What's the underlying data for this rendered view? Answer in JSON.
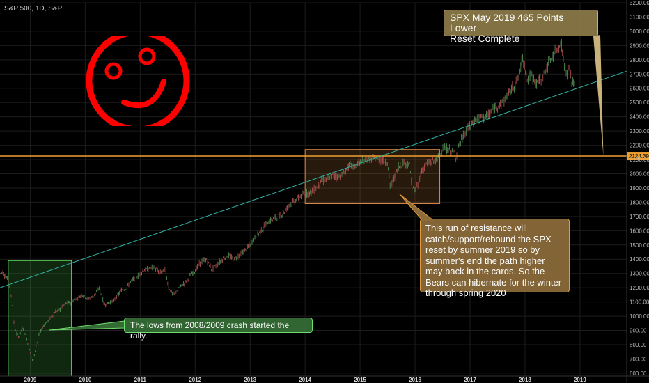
{
  "chart_data": {
    "type": "line",
    "title": "S&P 500, 1D, S&P",
    "ylim": [
      580,
      3200
    ],
    "xlim": [
      2008.55,
      2019.95
    ],
    "yticks": [
      600,
      700,
      800,
      900,
      1000,
      1100,
      1200,
      1300,
      1400,
      1500,
      1600,
      1700,
      1800,
      1900,
      2000,
      2100,
      2200,
      2300,
      2400,
      2500,
      2600,
      2700,
      2800,
      2900,
      3000,
      3100,
      3200
    ],
    "xticks": [
      {
        "x": 2009.1,
        "label": "2009"
      },
      {
        "x": 2010.1,
        "label": "2010"
      },
      {
        "x": 2011.1,
        "label": "2011"
      },
      {
        "x": 2012.1,
        "label": "2012"
      },
      {
        "x": 2013.1,
        "label": "2013"
      },
      {
        "x": 2014.1,
        "label": "2014"
      },
      {
        "x": 2015.1,
        "label": "2015"
      },
      {
        "x": 2016.1,
        "label": "2016"
      },
      {
        "x": 2017.1,
        "label": "2017"
      },
      {
        "x": 2018.1,
        "label": "2018"
      },
      {
        "x": 2019.1,
        "label": "2019"
      }
    ],
    "series": [
      {
        "x": [
          2008.55,
          2008.6,
          2008.65,
          2008.7,
          2008.75,
          2008.8,
          2008.85,
          2008.9,
          2008.95,
          2009.0,
          2009.05,
          2009.1,
          2009.15,
          2009.2,
          2009.25,
          2009.3,
          2009.35,
          2009.45,
          2009.55,
          2009.65,
          2009.75,
          2009.85,
          2009.95,
          2010.05,
          2010.15,
          2010.25,
          2010.35,
          2010.45,
          2010.55,
          2010.65,
          2010.75,
          2010.85,
          2010.95,
          2011.05,
          2011.15,
          2011.25,
          2011.35,
          2011.45,
          2011.55,
          2011.62,
          2011.7,
          2011.8,
          2011.9,
          2012.0,
          2012.1,
          2012.2,
          2012.3,
          2012.4,
          2012.5,
          2012.6,
          2012.7,
          2012.8,
          2012.9,
          2013.0,
          2013.1,
          2013.2,
          2013.3,
          2013.4,
          2013.5,
          2013.6,
          2013.7,
          2013.8,
          2013.9,
          2014.0,
          2014.1,
          2014.2,
          2014.3,
          2014.4,
          2014.5,
          2014.6,
          2014.7,
          2014.8,
          2014.9,
          2015.0,
          2015.1,
          2015.2,
          2015.3,
          2015.4,
          2015.5,
          2015.6,
          2015.65,
          2015.7,
          2015.8,
          2015.9,
          2016.0,
          2016.05,
          2016.1,
          2016.15,
          2016.2,
          2016.3,
          2016.4,
          2016.5,
          2016.6,
          2016.7,
          2016.8,
          2016.85,
          2016.9,
          2017.0,
          2017.1,
          2017.2,
          2017.3,
          2017.4,
          2017.5,
          2017.6,
          2017.7,
          2017.8,
          2017.9,
          2018.0,
          2018.05,
          2018.1,
          2018.15,
          2018.2,
          2018.3,
          2018.4,
          2018.5,
          2018.6,
          2018.7,
          2018.75,
          2018.8,
          2018.85,
          2018.9,
          2018.95,
          2019.0
        ],
        "y": [
          1300,
          1310,
          1280,
          1260,
          1150,
          960,
          880,
          850,
          920,
          880,
          820,
          750,
          680,
          780,
          860,
          900,
          940,
          980,
          1030,
          1050,
          1090,
          1100,
          1130,
          1150,
          1120,
          1140,
          1200,
          1080,
          1100,
          1120,
          1180,
          1200,
          1250,
          1280,
          1320,
          1330,
          1350,
          1300,
          1330,
          1200,
          1150,
          1200,
          1230,
          1280,
          1320,
          1380,
          1400,
          1330,
          1360,
          1400,
          1430,
          1400,
          1430,
          1460,
          1500,
          1560,
          1600,
          1650,
          1680,
          1700,
          1720,
          1780,
          1800,
          1840,
          1860,
          1870,
          1900,
          1950,
          1960,
          1990,
          1980,
          2000,
          2060,
          2050,
          2080,
          2100,
          2100,
          2110,
          2100,
          2080,
          1900,
          1950,
          2050,
          2080,
          2060,
          1900,
          1880,
          1920,
          2000,
          2070,
          2080,
          2100,
          2170,
          2170,
          2150,
          2120,
          2200,
          2280,
          2330,
          2380,
          2400,
          2400,
          2440,
          2480,
          2500,
          2560,
          2620,
          2690,
          2820,
          2750,
          2650,
          2700,
          2640,
          2670,
          2750,
          2830,
          2880,
          2930,
          2800,
          2700,
          2750,
          2650,
          2630
        ]
      }
    ],
    "reference_lines": [
      {
        "kind": "horizontal",
        "y": 2124.39,
        "label": "2124.39",
        "color": "#f0a030"
      },
      {
        "kind": "trend",
        "from": [
          2008.55,
          1200
        ],
        "to": [
          2019.95,
          2720
        ],
        "color": "#2fb5a6"
      }
    ],
    "target_projection": {
      "from": [
        2018.95,
        2620
      ],
      "to": [
        2019.5,
        2124.39
      ]
    },
    "zones": [
      {
        "x0": 2008.7,
        "x1": 2009.85,
        "y0": 580,
        "y1": 1390,
        "color": "#5bd65b"
      },
      {
        "x0": 2014.1,
        "x1": 2016.55,
        "y0": 1790,
        "y1": 2170,
        "color": "#e0894a"
      }
    ],
    "colors": {
      "up": "#5a9a5a",
      "down": "#c05555",
      "smiley": "#ff0000"
    }
  },
  "annotations": {
    "top": "SPX May 2019 465 Points Lower\nReset Complete",
    "middle": "This run of resistance will catch/support/rebound the SPX reset by summer 2019 so by summer's end the path higher may back in the cards. So the Bears can hibernate for the winter through spring 2020",
    "bottom": "The lows from 2008/2009 crash started the rally."
  }
}
